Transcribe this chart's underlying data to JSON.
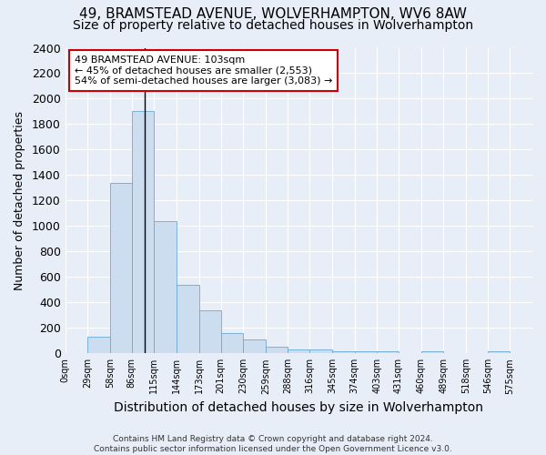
{
  "title1": "49, BRAMSTEAD AVENUE, WOLVERHAMPTON, WV6 8AW",
  "title2": "Size of property relative to detached houses in Wolverhampton",
  "xlabel": "Distribution of detached houses by size in Wolverhampton",
  "ylabel": "Number of detached properties",
  "footnote": "Contains HM Land Registry data © Crown copyright and database right 2024.\nContains public sector information licensed under the Open Government Licence v3.0.",
  "bin_edges": [
    0,
    29,
    58,
    86,
    115,
    144,
    173,
    201,
    230,
    259,
    288,
    316,
    345,
    374,
    403,
    431,
    460,
    489,
    518,
    546,
    575
  ],
  "bar_heights": [
    0,
    130,
    1340,
    1900,
    1040,
    540,
    340,
    160,
    110,
    55,
    30,
    30,
    15,
    15,
    15,
    0,
    15,
    0,
    0,
    15
  ],
  "bar_color": "#ccddf0",
  "bar_edge_color": "#6aaad4",
  "property_size": 103,
  "annotation_title": "49 BRAMSTEAD AVENUE: 103sqm",
  "annotation_line1": "← 45% of detached houses are smaller (2,553)",
  "annotation_line2": "54% of semi-detached houses are larger (3,083) →",
  "annotation_box_color": "#ffffff",
  "annotation_border_color": "#cc0000",
  "vline_color": "#000000",
  "ylim": [
    0,
    2400
  ],
  "yticks": [
    0,
    200,
    400,
    600,
    800,
    1000,
    1200,
    1400,
    1600,
    1800,
    2000,
    2200,
    2400
  ],
  "bg_color": "#e8eef8",
  "grid_color": "#ffffff",
  "title1_fontsize": 11,
  "title2_fontsize": 10,
  "xlabel_fontsize": 10,
  "ylabel_fontsize": 9,
  "footnote_fontsize": 6.5
}
